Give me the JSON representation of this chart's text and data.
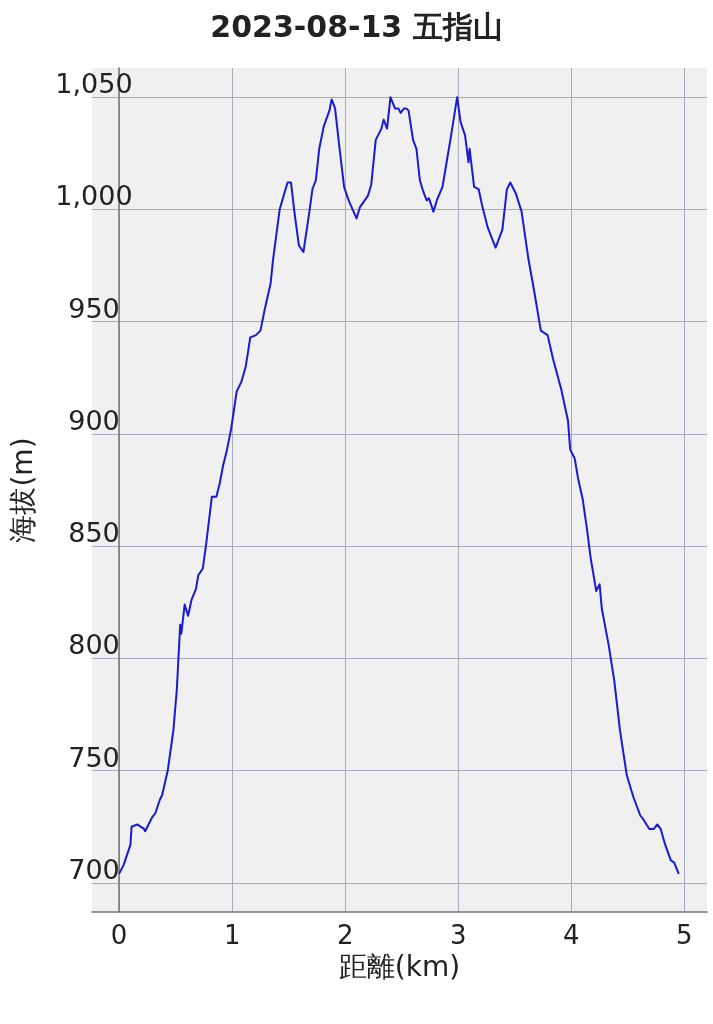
{
  "chart_data": {
    "type": "line",
    "title": "2023-08-13 五指山",
    "xlabel": "距離(km)",
    "ylabel": "海拔(m)",
    "x": [
      0,
      0.04,
      0.1,
      0.11,
      0.16,
      0.22,
      0.23,
      0.29,
      0.32,
      0.36,
      0.38,
      0.43,
      0.48,
      0.51,
      0.54,
      0.55,
      0.58,
      0.61,
      0.64,
      0.68,
      0.7,
      0.74,
      0.77,
      0.82,
      0.86,
      0.89,
      0.92,
      0.95,
      0.99,
      1.04,
      1.08,
      1.12,
      1.16,
      1.21,
      1.25,
      1.29,
      1.34,
      1.36,
      1.42,
      1.46,
      1.49,
      1.52,
      1.55,
      1.59,
      1.63,
      1.68,
      1.71,
      1.74,
      1.77,
      1.81,
      1.86,
      1.88,
      1.91,
      1.95,
      1.99,
      2.03,
      2.1,
      2.13,
      2.2,
      2.23,
      2.27,
      2.32,
      2.34,
      2.37,
      2.4,
      2.44,
      2.47,
      2.49,
      2.52,
      2.54,
      2.56,
      2.6,
      2.63,
      2.66,
      2.69,
      2.72,
      2.74,
      2.78,
      2.81,
      2.86,
      2.9,
      2.93,
      2.99,
      3.02,
      3.06,
      3.09,
      3.1,
      3.14,
      3.18,
      3.21,
      3.26,
      3.33,
      3.39,
      3.43,
      3.46,
      3.51,
      3.56,
      3.62,
      3.67,
      3.73,
      3.79,
      3.84,
      3.91,
      3.97,
      3.99,
      4.03,
      4.06,
      4.1,
      4.14,
      4.17,
      4.22,
      4.25,
      4.27,
      4.3,
      4.33,
      4.38,
      4.43,
      4.49,
      4.55,
      4.61,
      4.64,
      4.69,
      4.73,
      4.76,
      4.79,
      4.83,
      4.88,
      4.91,
      4.95
    ],
    "series": [
      {
        "color": "#1a1ad6",
        "values": [
          704,
          708,
          717,
          725,
          726,
          724,
          723,
          729,
          731,
          737,
          739,
          750,
          768,
          786,
          815,
          811,
          824,
          819,
          826,
          831,
          837,
          840,
          851,
          872,
          872,
          878,
          886,
          892,
          902,
          919,
          923,
          930,
          943,
          944,
          946,
          956,
          967,
          977,
          1000,
          1007,
          1012,
          1012,
          999,
          984,
          981,
          998,
          1009,
          1013,
          1027,
          1037,
          1044,
          1049,
          1045,
          1027,
          1010,
          1004,
          996,
          1001,
          1006,
          1011,
          1031,
          1036,
          1040,
          1036,
          1050,
          1045,
          1045,
          1043,
          1045,
          1045,
          1044,
          1031,
          1027,
          1013,
          1008,
          1004,
          1005,
          999,
          1004,
          1010,
          1022,
          1031,
          1050,
          1039,
          1033,
          1021,
          1027,
          1010,
          1009,
          1002,
          992,
          983,
          991,
          1009,
          1012,
          1007,
          999,
          978,
          964,
          946,
          944,
          933,
          920,
          906,
          893,
          889,
          880,
          871,
          857,
          845,
          830,
          833,
          822,
          814,
          806,
          790,
          768,
          748,
          738,
          730,
          728,
          724,
          724,
          726,
          724,
          717,
          710,
          709,
          704
        ]
      }
    ],
    "xlim": [
      -0.24,
      5.2
    ],
    "xticks": [
      0,
      1,
      2,
      3,
      4,
      5
    ],
    "ylim": [
      687,
      1063
    ],
    "yticks": [
      700,
      750,
      800,
      850,
      900,
      950,
      {
        "value": 1000,
        "label": "1,000"
      },
      {
        "value": 1050,
        "label": "1,050"
      }
    ],
    "grid": true,
    "marker": "none",
    "line_style": "solid"
  }
}
